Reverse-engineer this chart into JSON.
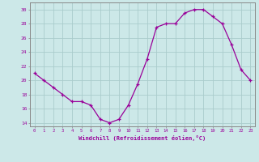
{
  "hours": [
    0,
    1,
    2,
    3,
    4,
    5,
    6,
    7,
    8,
    9,
    10,
    11,
    12,
    13,
    14,
    15,
    16,
    17,
    18,
    19,
    20,
    21,
    22,
    23
  ],
  "values": [
    21,
    20,
    19,
    18,
    17,
    17,
    16.5,
    14.5,
    14,
    14.5,
    16.5,
    19.5,
    23,
    27.5,
    28,
    28,
    29.5,
    30,
    30,
    29,
    28,
    25,
    21.5,
    20
  ],
  "ylabel_ticks": [
    14,
    16,
    18,
    20,
    22,
    24,
    26,
    28,
    30
  ],
  "ylim": [
    13.5,
    31
  ],
  "xlim": [
    -0.5,
    23.5
  ],
  "line_color": "#990099",
  "marker": "+",
  "bg_color": "#cce8e8",
  "grid_color": "#aacccc",
  "spine_color": "#888888",
  "label_color": "#990099",
  "xlabel": "Windchill (Refroidissement éolien,°C)"
}
